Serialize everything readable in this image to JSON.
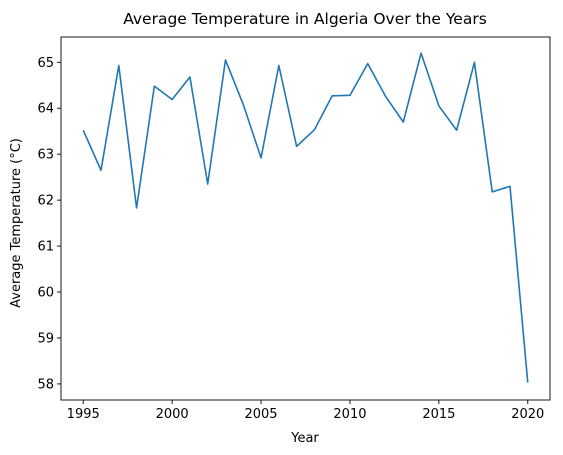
{
  "chart_data": {
    "type": "line",
    "title": "Average Temperature in Algeria Over the Years",
    "xlabel": "Year",
    "ylabel": "Average Temperature (°C)",
    "xlim": [
      1993.75,
      2021.25
    ],
    "ylim": [
      57.65,
      65.55
    ],
    "xticks": [
      1995,
      2000,
      2005,
      2010,
      2015,
      2020
    ],
    "yticks": [
      58,
      59,
      60,
      61,
      62,
      63,
      64,
      65
    ],
    "grid": false,
    "legend": "none",
    "color": "#1f77b4",
    "series": [
      {
        "x": [
          1995,
          1996,
          1997,
          1998,
          1999,
          2000,
          2001,
          2002,
          2003,
          2004,
          2005,
          2006,
          2007,
          2008,
          2009,
          2010,
          2011,
          2012,
          2013,
          2014,
          2015,
          2016,
          2017,
          2018,
          2019,
          2020
        ],
        "y": [
          63.52,
          62.65,
          64.93,
          61.83,
          64.48,
          64.19,
          64.68,
          62.35,
          65.05,
          64.08,
          62.92,
          64.93,
          63.17,
          63.53,
          64.27,
          64.28,
          64.97,
          64.26,
          63.7,
          65.2,
          64.05,
          63.52,
          65.0,
          62.18,
          62.3,
          58.03
        ]
      }
    ]
  }
}
